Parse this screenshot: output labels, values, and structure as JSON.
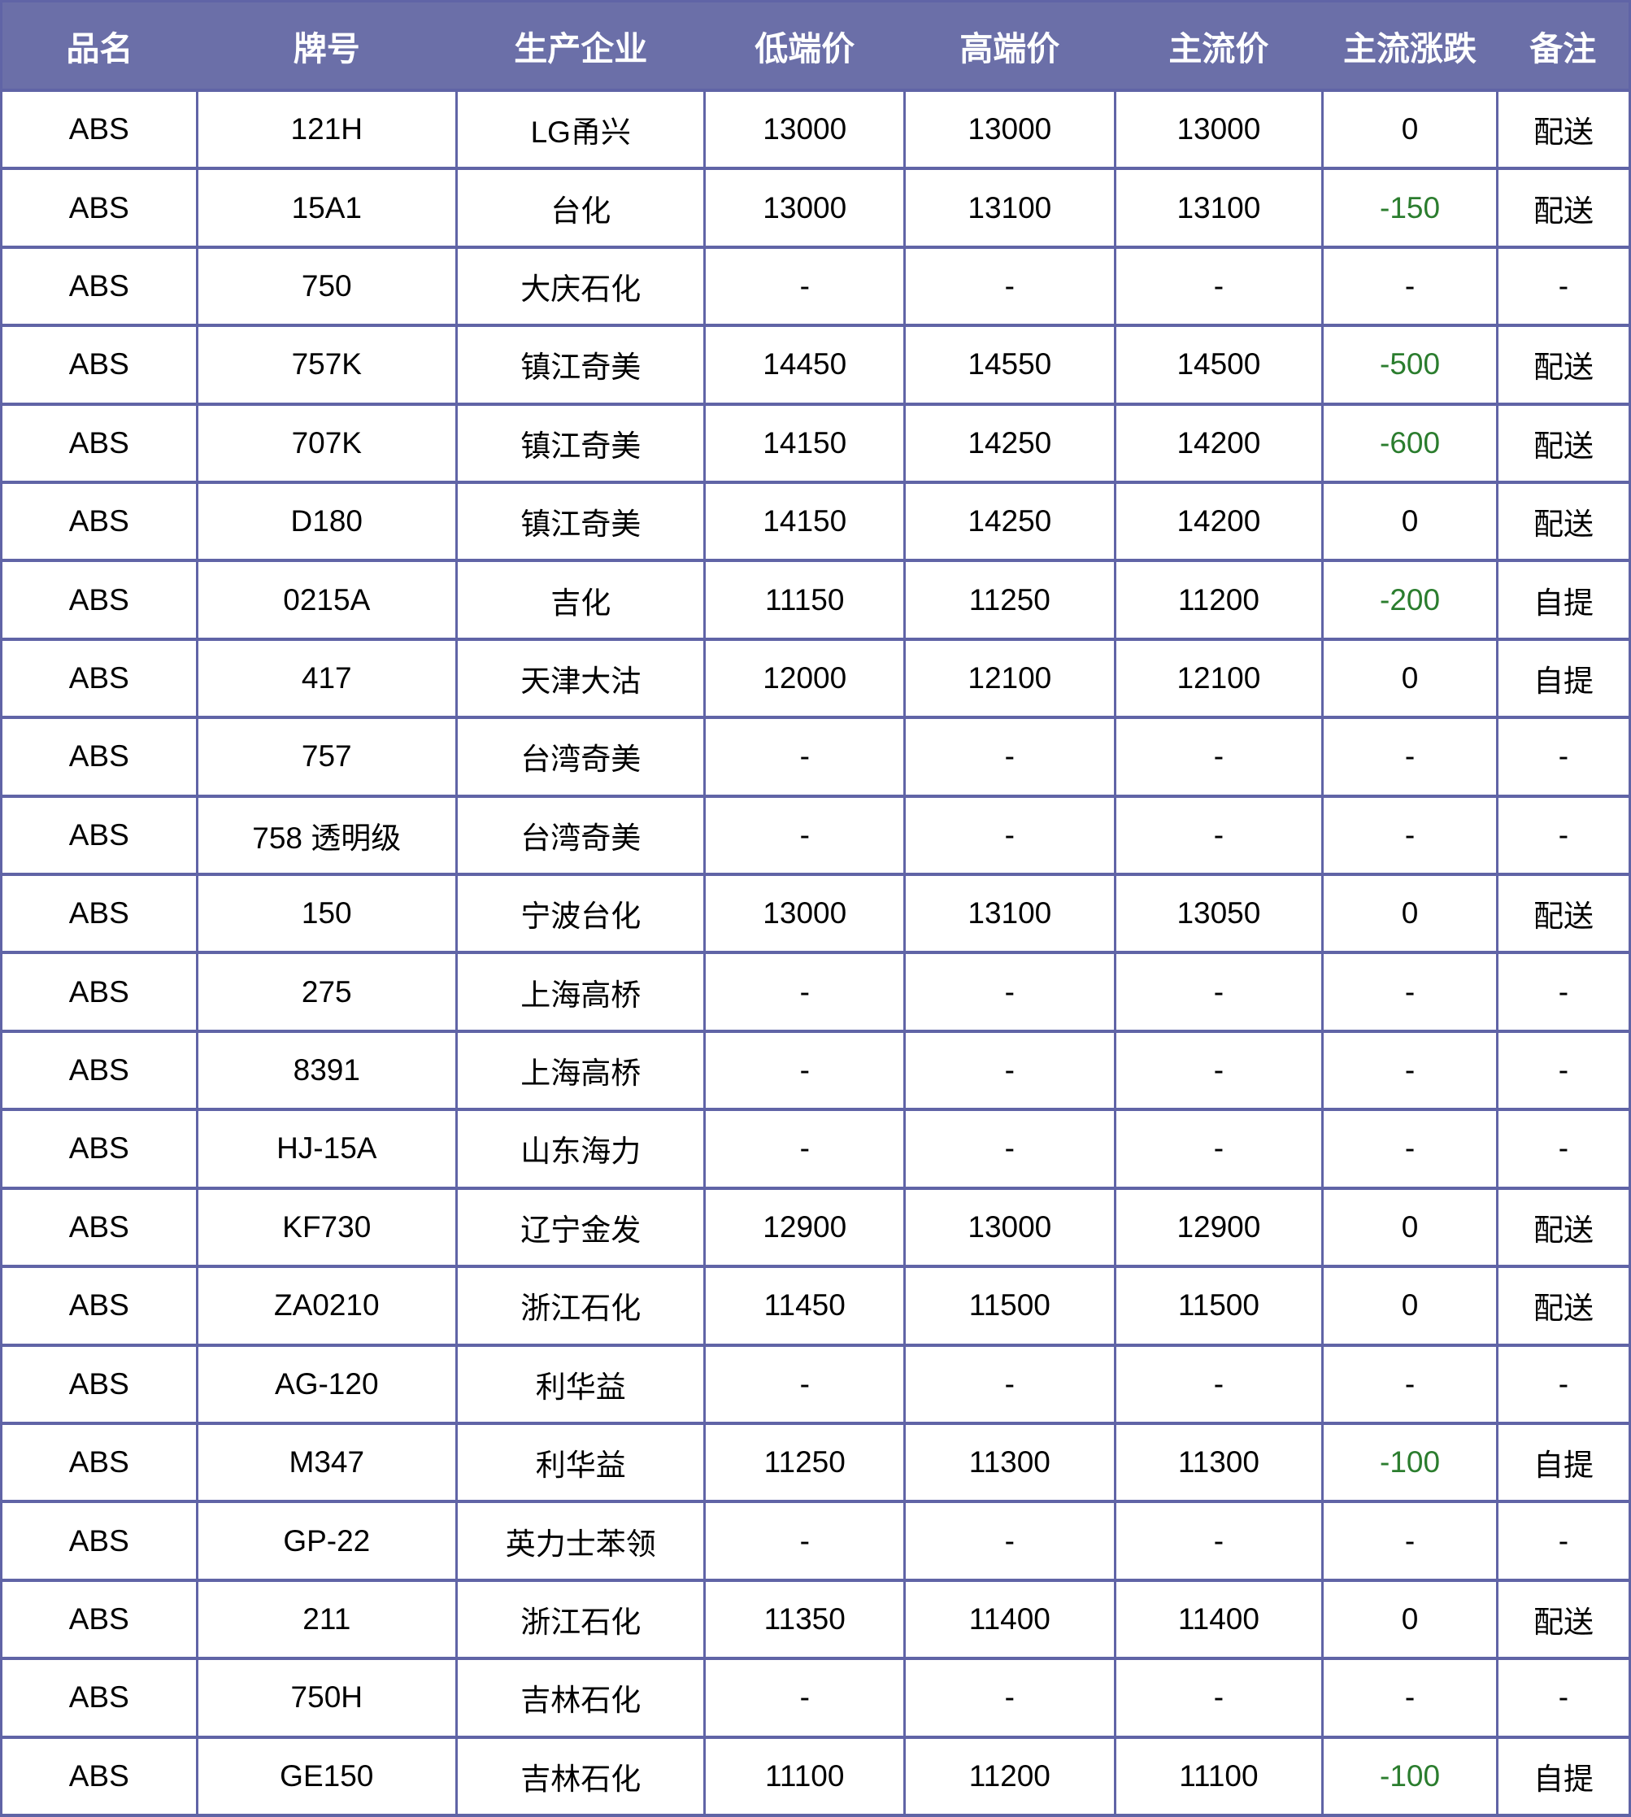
{
  "colors": {
    "header_bg": "#6b6fa8",
    "border": "#6064a6",
    "negative_change": "#2b7d2e",
    "header_text": "#ffffff",
    "cell_text": "#000000"
  },
  "table": {
    "columns": [
      {
        "key": "product",
        "label": "品名"
      },
      {
        "key": "grade",
        "label": "牌号"
      },
      {
        "key": "manufacturer",
        "label": "生产企业"
      },
      {
        "key": "low-price",
        "label": "低端价"
      },
      {
        "key": "high-price",
        "label": "高端价"
      },
      {
        "key": "main-price",
        "label": "主流价"
      },
      {
        "key": "main-change",
        "label": "主流涨跌"
      },
      {
        "key": "remark",
        "label": "备注"
      }
    ],
    "column_widths_pct": [
      12.01,
      15.95,
      15.25,
      12.26,
      12.91,
      12.76,
      10.72,
      8.14
    ],
    "rows": [
      {
        "cells": [
          "ABS",
          "121H",
          "LG甬兴",
          "13000",
          "13000",
          "13000",
          "0",
          "配送"
        ]
      },
      {
        "cells": [
          "ABS",
          "15A1",
          "台化",
          "13000",
          "13100",
          "13100",
          "-150",
          "配送"
        ]
      },
      {
        "cells": [
          "ABS",
          "750",
          "大庆石化",
          "-",
          "-",
          "-",
          "-",
          "-"
        ]
      },
      {
        "cells": [
          "ABS",
          "757K",
          "镇江奇美",
          "14450",
          "14550",
          "14500",
          "-500",
          "配送"
        ]
      },
      {
        "cells": [
          "ABS",
          "707K",
          "镇江奇美",
          "14150",
          "14250",
          "14200",
          "-600",
          "配送"
        ]
      },
      {
        "cells": [
          "ABS",
          "D180",
          "镇江奇美",
          "14150",
          "14250",
          "14200",
          "0",
          "配送"
        ]
      },
      {
        "cells": [
          "ABS",
          "0215A",
          "吉化",
          "11150",
          "11250",
          "11200",
          "-200",
          "自提"
        ]
      },
      {
        "cells": [
          "ABS",
          "417",
          "天津大沽",
          "12000",
          "12100",
          "12100",
          "0",
          "自提"
        ]
      },
      {
        "cells": [
          "ABS",
          "757",
          "台湾奇美",
          "-",
          "-",
          "-",
          "-",
          "-"
        ]
      },
      {
        "cells": [
          "ABS",
          "758 透明级",
          "台湾奇美",
          "-",
          "-",
          "-",
          "-",
          "-"
        ]
      },
      {
        "cells": [
          "ABS",
          "150",
          "宁波台化",
          "13000",
          "13100",
          "13050",
          "0",
          "配送"
        ]
      },
      {
        "cells": [
          "ABS",
          "275",
          "上海高桥",
          "-",
          "-",
          "-",
          "-",
          "-"
        ]
      },
      {
        "cells": [
          "ABS",
          "8391",
          "上海高桥",
          "-",
          "-",
          "-",
          "-",
          "-"
        ]
      },
      {
        "cells": [
          "ABS",
          "HJ-15A",
          "山东海力",
          "-",
          "-",
          "-",
          "-",
          "-"
        ]
      },
      {
        "cells": [
          "ABS",
          "KF730",
          "辽宁金发",
          "12900",
          "13000",
          "12900",
          "0",
          "配送"
        ]
      },
      {
        "cells": [
          "ABS",
          "ZA0210",
          "浙江石化",
          "11450",
          "11500",
          "11500",
          "0",
          "配送"
        ]
      },
      {
        "cells": [
          "ABS",
          "AG-120",
          "利华益",
          "-",
          "-",
          "-",
          "-",
          "-"
        ]
      },
      {
        "cells": [
          "ABS",
          "M347",
          "利华益",
          "11250",
          "11300",
          "11300",
          "-100",
          "自提"
        ]
      },
      {
        "cells": [
          "ABS",
          "GP-22",
          "英力士苯领",
          "-",
          "-",
          "-",
          "-",
          "-"
        ]
      },
      {
        "cells": [
          "ABS",
          "211",
          "浙江石化",
          "11350",
          "11400",
          "11400",
          "0",
          "配送"
        ]
      },
      {
        "cells": [
          "ABS",
          "750H",
          "吉林石化",
          "-",
          "-",
          "-",
          "-",
          "-"
        ]
      },
      {
        "cells": [
          "ABS",
          "GE150",
          "吉林石化",
          "11100",
          "11200",
          "11100",
          "-100",
          "自提"
        ]
      }
    ]
  }
}
